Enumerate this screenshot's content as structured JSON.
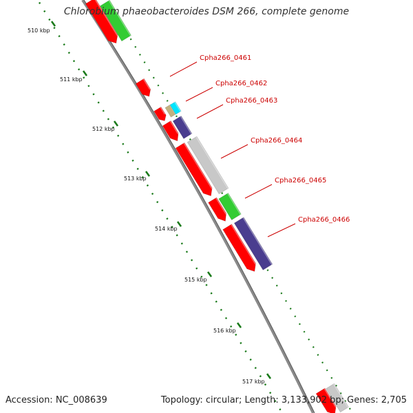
{
  "title": "Chlorobium phaeobacteroides DSM 266, complete genome",
  "footer": {
    "accession": "Accession: NC_008639",
    "summary": "Topology: circular; Length: 3,133,902 bp; Genes: 2,705"
  },
  "colors": {
    "backbone": "#8a8a8a",
    "tick": "#1a7a1a",
    "label": "#cc0000",
    "red": "#ff0000",
    "green": "#33cc33",
    "navy": "#4a3d8f",
    "gray": "#c8c8c8",
    "cyan": "#00e5ff",
    "khaki": "#c2b280"
  },
  "scale": {
    "ticks": [
      {
        "label": "510 kbp"
      },
      {
        "label": "511 kbp"
      },
      {
        "label": "512 kbp"
      },
      {
        "label": "513 kbp"
      },
      {
        "label": "514 kbp"
      },
      {
        "label": "515 kbp"
      },
      {
        "label": "516 kbp"
      },
      {
        "label": "517 kbp"
      }
    ]
  },
  "gene_labels": [
    {
      "text": "Cpha266_0461"
    },
    {
      "text": "Cpha266_0462"
    },
    {
      "text": "Cpha266_0463"
    },
    {
      "text": "Cpha266_0464"
    },
    {
      "text": "Cpha266_0465"
    },
    {
      "text": "Cpha266_0466"
    }
  ]
}
